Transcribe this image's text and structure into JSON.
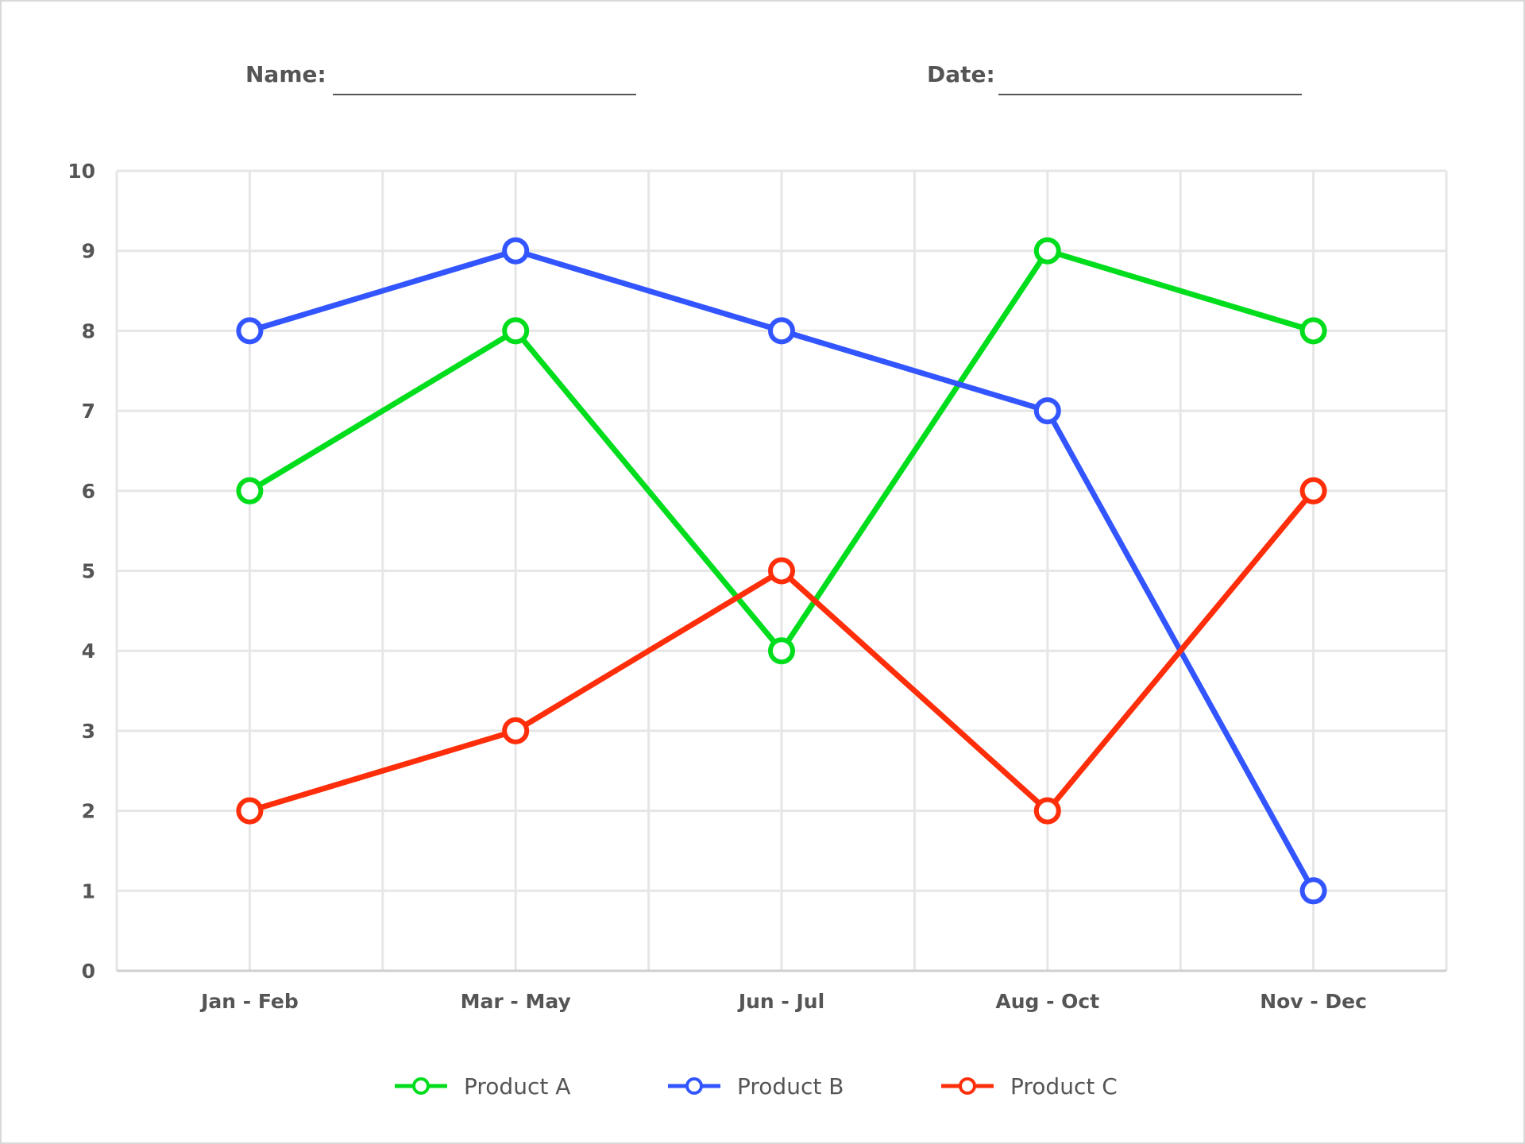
{
  "form": {
    "name_label": "Name:",
    "date_label": "Date:"
  },
  "colors": {
    "product_a": "#00dd1c",
    "product_b": "#3355ff",
    "product_c": "#ff2e0a",
    "grid": "#e6e6e6",
    "axis": "#cfcfcf",
    "text": "#555555"
  },
  "chart_data": {
    "type": "line",
    "title": "",
    "xlabel": "",
    "ylabel": "",
    "categories": [
      "Jan - Feb",
      "Mar - May",
      "Jun - Jul",
      "Aug - Oct",
      "Nov - Dec"
    ],
    "ylim": [
      0,
      10
    ],
    "yticks": [
      0,
      1,
      2,
      3,
      4,
      5,
      6,
      7,
      8,
      9,
      10
    ],
    "grid": true,
    "marker": "hollow-circle",
    "legend_position": "bottom",
    "series": [
      {
        "name": "Product A",
        "color": "#00dd1c",
        "values": [
          6,
          8,
          4,
          9,
          8
        ]
      },
      {
        "name": "Product B",
        "color": "#3355ff",
        "values": [
          8,
          9,
          8,
          7,
          1
        ]
      },
      {
        "name": "Product C",
        "color": "#ff2e0a",
        "values": [
          2,
          3,
          5,
          2,
          6
        ]
      }
    ]
  }
}
